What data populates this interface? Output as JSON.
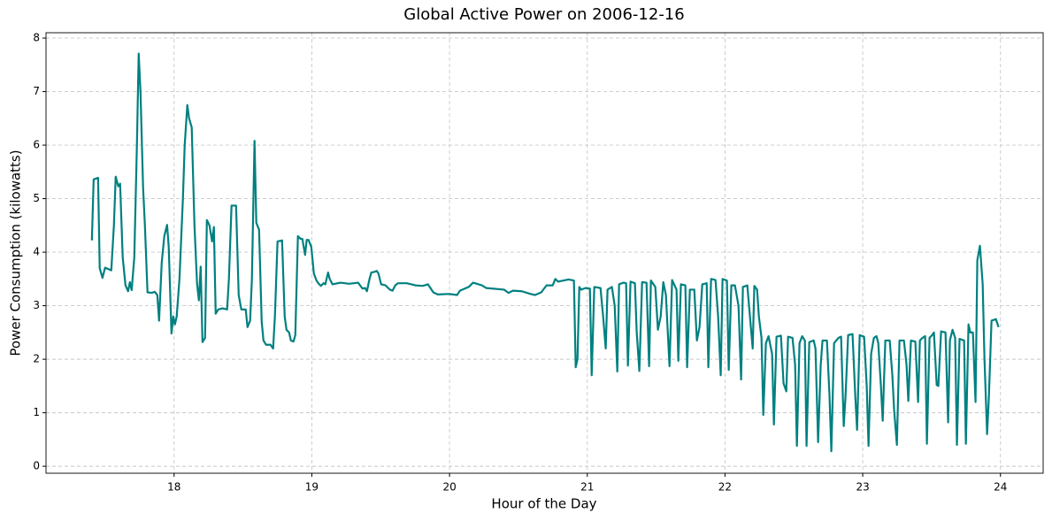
{
  "chart_data": {
    "type": "line",
    "title": "Global Active Power on 2006-12-16",
    "x_label": "Hour of the Day",
    "y_label": "Power Consumption (kilowatts)",
    "color": "#008080",
    "grid": true,
    "xlim": [
      17.07,
      24.31
    ],
    "ylim": [
      -0.13,
      8.1
    ],
    "xticks": [
      18,
      19,
      20,
      21,
      22,
      23,
      24
    ],
    "yticks": [
      0,
      1,
      2,
      3,
      4,
      5,
      6,
      7,
      8
    ],
    "x": [
      17.403,
      17.416,
      17.448,
      17.46,
      17.48,
      17.499,
      17.544,
      17.563,
      17.576,
      17.595,
      17.608,
      17.627,
      17.647,
      17.666,
      17.679,
      17.692,
      17.711,
      17.73,
      17.743,
      17.756,
      17.775,
      17.788,
      17.807,
      17.839,
      17.859,
      17.878,
      17.891,
      17.91,
      17.929,
      17.949,
      17.961,
      17.981,
      17.994,
      18.006,
      18.019,
      18.039,
      18.064,
      18.077,
      18.096,
      18.109,
      18.128,
      18.148,
      18.167,
      18.18,
      18.193,
      18.206,
      18.225,
      18.238,
      18.257,
      18.276,
      18.289,
      18.302,
      18.321,
      18.353,
      18.385,
      18.398,
      18.417,
      18.45,
      18.469,
      18.488,
      18.52,
      18.533,
      18.552,
      18.565,
      18.584,
      18.597,
      18.617,
      18.636,
      18.649,
      18.668,
      18.7,
      18.719,
      18.732,
      18.751,
      18.784,
      18.803,
      18.816,
      18.835,
      18.848,
      18.867,
      18.88,
      18.899,
      18.918,
      18.931,
      18.951,
      18.963,
      18.976,
      18.996,
      19.015,
      19.034,
      19.047,
      19.066,
      19.085,
      19.098,
      19.118,
      19.13,
      19.15,
      19.207,
      19.272,
      19.336,
      19.368,
      19.387,
      19.4,
      19.419,
      19.432,
      19.452,
      19.471,
      19.484,
      19.503,
      19.535,
      19.567,
      19.586,
      19.606,
      19.625,
      19.689,
      19.753,
      19.805,
      19.843,
      19.882,
      19.914,
      19.997,
      20.055,
      20.075,
      20.139,
      20.171,
      20.235,
      20.267,
      20.396,
      20.428,
      20.46,
      20.524,
      20.588,
      20.621,
      20.666,
      20.704,
      20.749,
      20.768,
      20.788,
      20.865,
      20.903,
      20.916,
      20.929,
      20.942,
      20.955,
      20.987,
      21.019,
      21.032,
      21.051,
      21.096,
      21.115,
      21.134,
      21.147,
      21.179,
      21.199,
      21.218,
      21.231,
      21.263,
      21.282,
      21.295,
      21.314,
      21.346,
      21.359,
      21.378,
      21.398,
      21.43,
      21.449,
      21.462,
      21.494,
      21.513,
      21.533,
      21.552,
      21.571,
      21.597,
      21.616,
      21.648,
      21.661,
      21.68,
      21.712,
      21.725,
      21.745,
      21.777,
      21.796,
      21.815,
      21.835,
      21.867,
      21.879,
      21.899,
      21.931,
      21.95,
      21.969,
      21.982,
      22.014,
      22.027,
      22.046,
      22.072,
      22.098,
      22.117,
      22.13,
      22.162,
      22.181,
      22.201,
      22.213,
      22.233,
      22.246,
      22.265,
      22.278,
      22.297,
      22.316,
      22.342,
      22.355,
      22.374,
      22.406,
      22.425,
      22.445,
      22.458,
      22.49,
      22.509,
      22.522,
      22.541,
      22.56,
      22.58,
      22.592,
      22.612,
      22.644,
      22.657,
      22.676,
      22.695,
      22.708,
      22.74,
      22.759,
      22.772,
      22.792,
      22.824,
      22.843,
      22.862,
      22.875,
      22.894,
      22.926,
      22.946,
      22.959,
      22.978,
      23.01,
      23.029,
      23.042,
      23.061,
      23.081,
      23.1,
      23.113,
      23.132,
      23.145,
      23.164,
      23.196,
      23.215,
      23.228,
      23.248,
      23.267,
      23.299,
      23.318,
      23.331,
      23.35,
      23.382,
      23.402,
      23.415,
      23.434,
      23.453,
      23.466,
      23.485,
      23.504,
      23.517,
      23.537,
      23.549,
      23.569,
      23.601,
      23.62,
      23.633,
      23.652,
      23.671,
      23.684,
      23.703,
      23.736,
      23.749,
      23.768,
      23.781,
      23.8,
      23.819,
      23.832,
      23.851,
      23.871,
      23.884,
      23.903,
      23.916,
      23.935,
      23.967,
      23.986
    ],
    "values": [
      4.22,
      5.36,
      5.39,
      3.7,
      3.52,
      3.71,
      3.66,
      4.5,
      5.41,
      5.23,
      5.28,
      3.9,
      3.38,
      3.27,
      3.44,
      3.29,
      3.9,
      6.0,
      7.71,
      7.0,
      5.2,
      4.5,
      3.25,
      3.24,
      3.26,
      3.2,
      2.72,
      3.8,
      4.3,
      4.51,
      4.1,
      2.48,
      2.8,
      2.65,
      2.8,
      3.5,
      5.0,
      6.0,
      6.75,
      6.5,
      6.33,
      4.5,
      3.4,
      3.1,
      3.73,
      2.32,
      2.4,
      4.6,
      4.5,
      4.2,
      4.47,
      2.85,
      2.93,
      2.95,
      2.93,
      3.5,
      4.87,
      4.87,
      3.2,
      2.93,
      2.93,
      2.6,
      2.72,
      3.5,
      6.08,
      4.55,
      4.42,
      2.7,
      2.35,
      2.27,
      2.27,
      2.2,
      2.8,
      4.2,
      4.22,
      2.8,
      2.55,
      2.5,
      2.35,
      2.33,
      2.45,
      4.3,
      4.25,
      4.25,
      3.95,
      4.23,
      4.23,
      4.1,
      3.6,
      3.47,
      3.42,
      3.37,
      3.42,
      3.4,
      3.62,
      3.5,
      3.4,
      3.43,
      3.41,
      3.43,
      3.32,
      3.33,
      3.27,
      3.5,
      3.62,
      3.63,
      3.65,
      3.6,
      3.4,
      3.38,
      3.3,
      3.28,
      3.38,
      3.42,
      3.42,
      3.38,
      3.37,
      3.4,
      3.25,
      3.21,
      3.22,
      3.2,
      3.28,
      3.35,
      3.43,
      3.38,
      3.33,
      3.3,
      3.24,
      3.28,
      3.27,
      3.22,
      3.2,
      3.25,
      3.38,
      3.38,
      3.5,
      3.45,
      3.49,
      3.47,
      1.85,
      2.0,
      3.35,
      3.3,
      3.33,
      3.32,
      1.7,
      3.35,
      3.33,
      2.8,
      2.2,
      3.3,
      3.35,
      3.0,
      1.77,
      3.4,
      3.43,
      3.42,
      1.88,
      3.45,
      3.42,
      2.5,
      1.78,
      3.44,
      3.43,
      1.87,
      3.47,
      3.35,
      2.55,
      2.8,
      3.44,
      3.2,
      1.87,
      3.48,
      3.3,
      1.97,
      3.4,
      3.38,
      1.85,
      3.3,
      3.3,
      2.35,
      2.6,
      3.4,
      3.42,
      1.85,
      3.5,
      3.48,
      2.8,
      1.7,
      3.5,
      3.47,
      1.8,
      3.38,
      3.38,
      3.0,
      1.62,
      3.35,
      3.38,
      2.8,
      2.2,
      3.37,
      3.3,
      2.8,
      2.4,
      0.96,
      2.3,
      2.43,
      2.1,
      0.78,
      2.42,
      2.44,
      1.55,
      1.4,
      2.42,
      2.4,
      1.9,
      0.38,
      2.3,
      2.43,
      2.35,
      0.38,
      2.32,
      2.35,
      2.2,
      0.45,
      1.9,
      2.35,
      2.35,
      1.3,
      0.28,
      2.3,
      2.4,
      2.42,
      0.75,
      1.3,
      2.45,
      2.47,
      1.3,
      0.68,
      2.45,
      2.42,
      1.5,
      0.38,
      2.1,
      2.4,
      2.43,
      2.3,
      1.5,
      0.85,
      2.35,
      2.35,
      1.7,
      1.05,
      0.4,
      2.35,
      2.35,
      1.9,
      1.22,
      2.35,
      2.33,
      1.2,
      2.35,
      2.4,
      2.43,
      0.42,
      2.4,
      2.45,
      2.5,
      1.52,
      1.5,
      2.52,
      2.5,
      0.82,
      2.35,
      2.55,
      2.4,
      0.4,
      2.38,
      2.35,
      0.42,
      2.65,
      2.5,
      2.5,
      1.2,
      3.85,
      4.12,
      3.4,
      2.0,
      0.6,
      1.3,
      2.72,
      2.75,
      2.6
    ]
  }
}
